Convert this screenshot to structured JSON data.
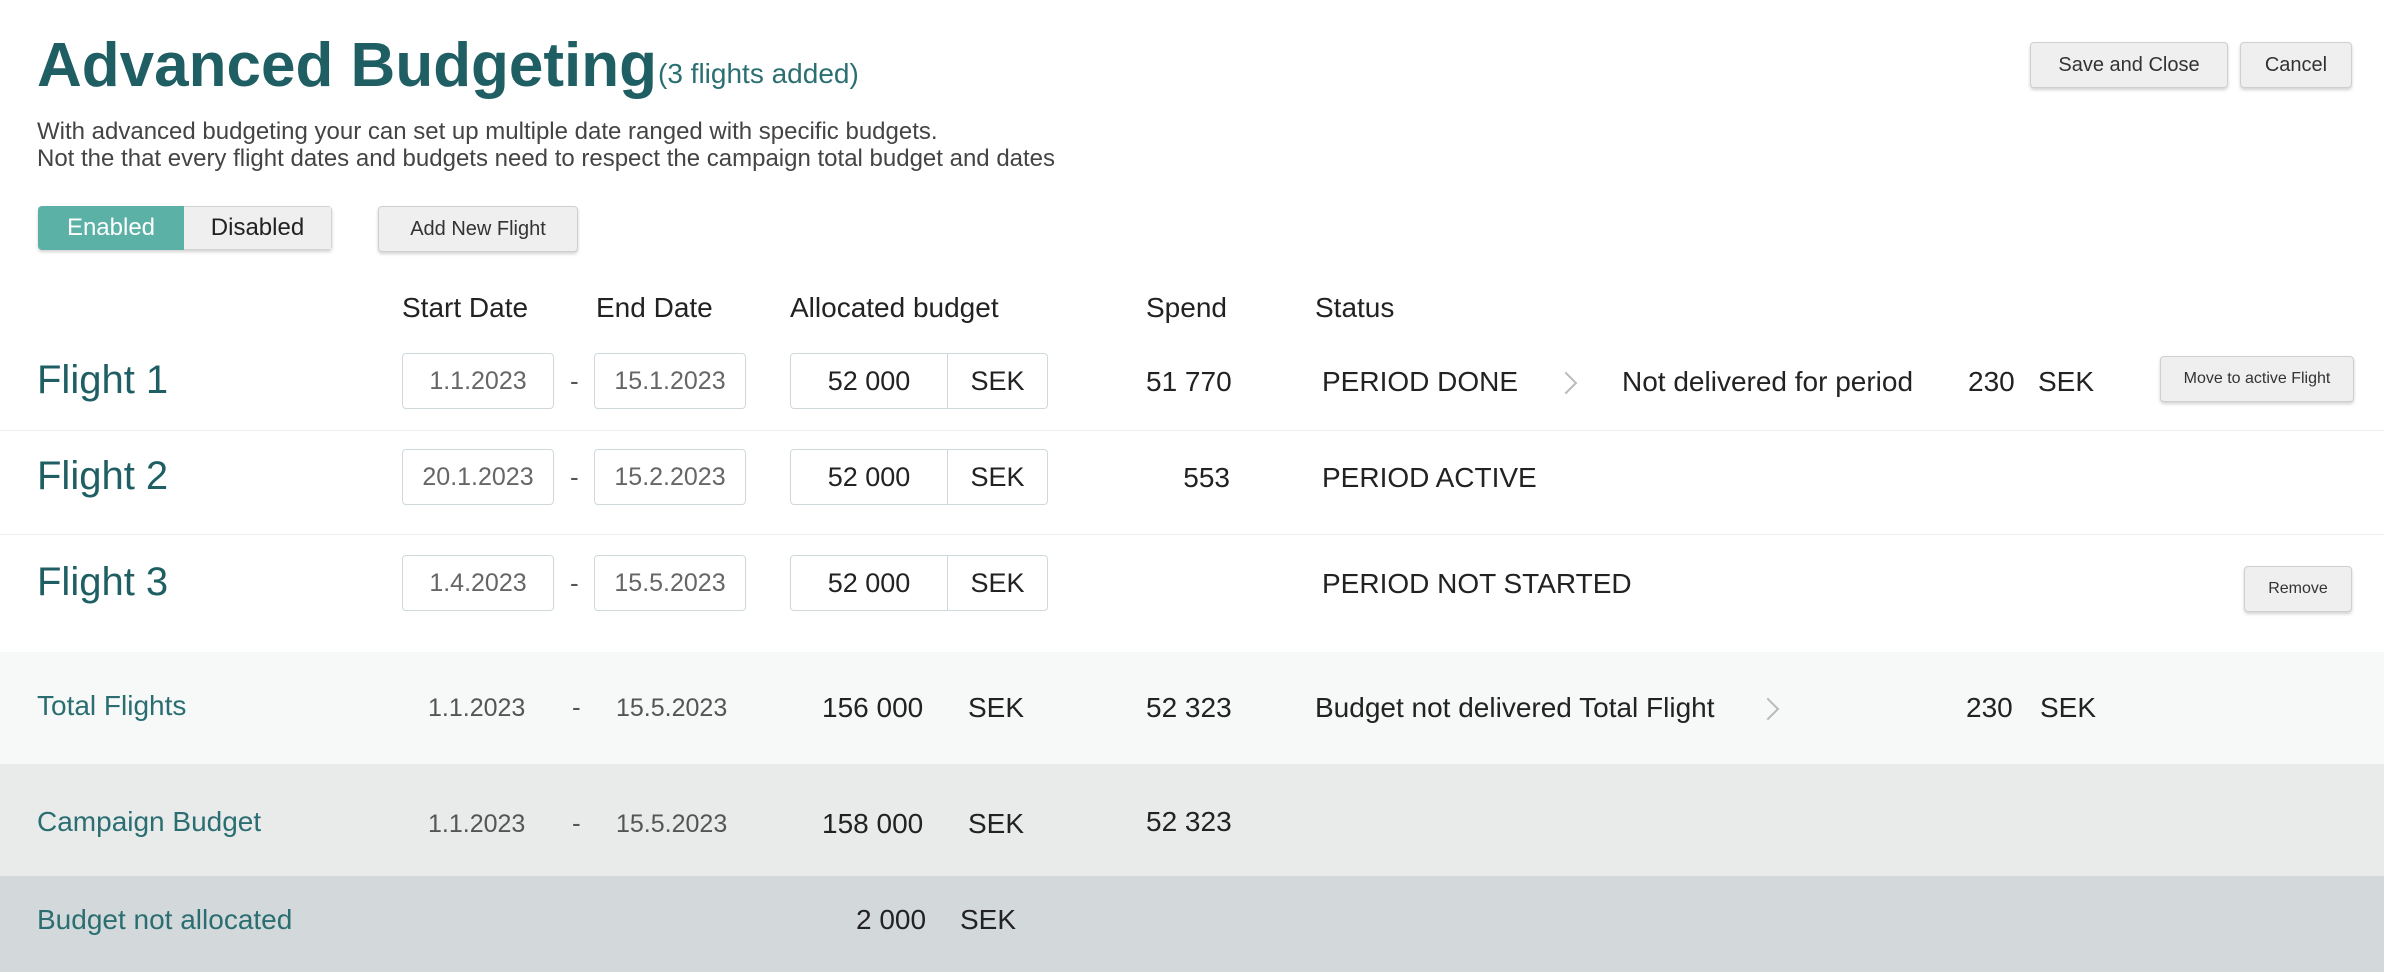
{
  "header": {
    "title": "Advanced Budgeting",
    "flights_count": "(3 flights added)",
    "description_line1": "With advanced budgeting your can set up multiple date ranged with specific budgets.",
    "description_line2": "Not the that every flight dates and budgets need to respect the campaign total budget and dates",
    "save_close_label": "Save and Close",
    "cancel_label": "Cancel"
  },
  "controls": {
    "toggle_enabled": "Enabled",
    "toggle_disabled": "Disabled",
    "toggle_selected": "Enabled",
    "add_flight_label": "Add New Flight"
  },
  "columns": {
    "start": "Start Date",
    "end": "End Date",
    "allocated": "Allocated budget",
    "spend": "Spend",
    "status": "Status"
  },
  "flights": [
    {
      "name": "Flight 1",
      "start": "1.1.2023",
      "end": "15.1.2023",
      "budget": "52 000",
      "currency": "SEK",
      "spend": "51 770",
      "status": "PERIOD DONE",
      "extra_label": "Not delivered for period",
      "extra_amount": "230",
      "extra_currency": "SEK",
      "action_label": "Move to active Flight"
    },
    {
      "name": "Flight 2",
      "start": "20.1.2023",
      "end": "15.2.2023",
      "budget": "52 000",
      "currency": "SEK",
      "spend": "553",
      "status": "PERIOD ACTIVE"
    },
    {
      "name": "Flight 3",
      "start": "1.4.2023",
      "end": "15.5.2023",
      "budget": "52 000",
      "currency": "SEK",
      "spend": "",
      "status": "PERIOD NOT STARTED",
      "action_label": "Remove"
    }
  ],
  "dash": "-",
  "totals": {
    "label": "Total Flights",
    "start": "1.1.2023",
    "end": "15.5.2023",
    "budget": "156 000",
    "currency": "SEK",
    "spend": "52 323",
    "status": "Budget not delivered Total Flight",
    "amount": "230",
    "amount_currency": "SEK"
  },
  "campaign": {
    "label": "Campaign Budget",
    "start": "1.1.2023",
    "end": "15.5.2023",
    "budget": "158 000",
    "currency": "SEK",
    "spend": "52 323"
  },
  "unallocated": {
    "label": "Budget not allocated",
    "amount": "2 000",
    "currency": "SEK"
  },
  "colors": {
    "accent": "#5bb1a6",
    "title": "#1f5f64",
    "band_light": "#f7f8f8",
    "band_mid": "#e9ebeb",
    "band_dark": "#d3d9db"
  }
}
